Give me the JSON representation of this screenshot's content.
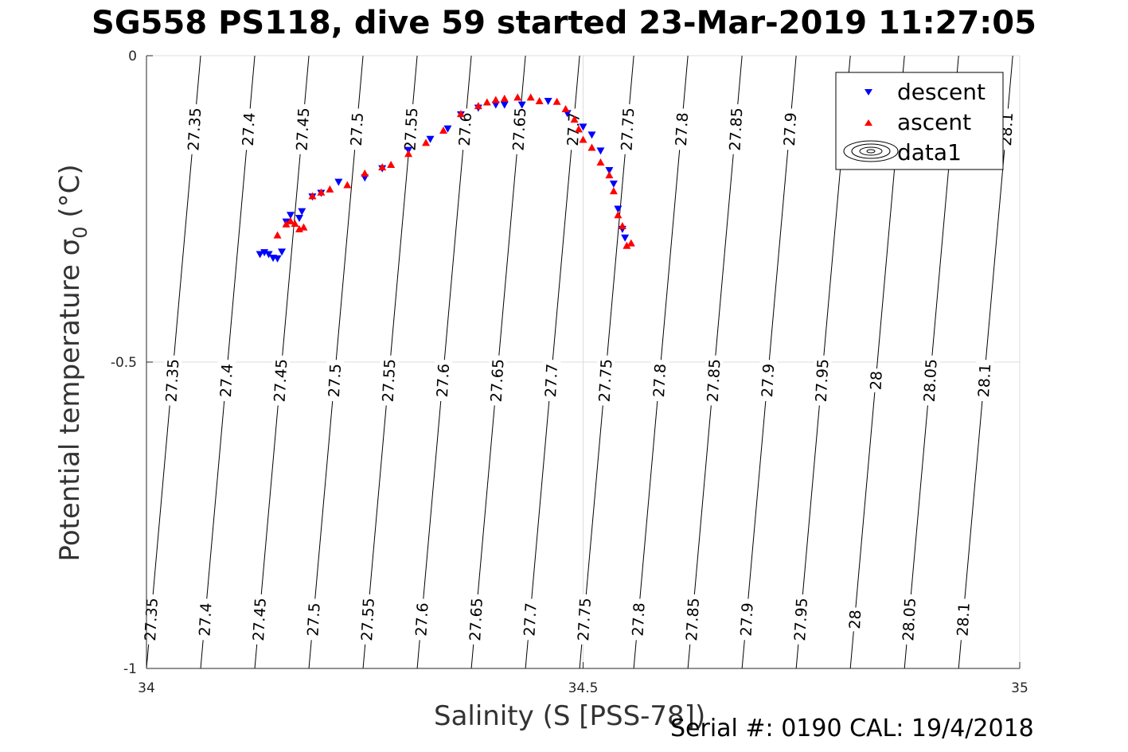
{
  "title": "SG558 PS118, dive 59 started 23-Mar-2019 11:27:05",
  "footer": "Serial #: 0190  CAL: 19/4/2018",
  "chart_data": {
    "type": "scatter",
    "title": "SG558 PS118, dive 59 started 23-Mar-2019 11:27:05",
    "xlabel": "Salinity (S [PSS-78])",
    "ylabel_main": "Potential temperature ",
    "ylabel_sigma": "σ",
    "ylabel_sub": "0",
    "ylabel_unit": " (°C)",
    "xlim": [
      34,
      35
    ],
    "ylim": [
      -1,
      0
    ],
    "xticks": [
      "34",
      "34.5",
      "35"
    ],
    "yticks": [
      "0",
      "-0.5",
      "-1"
    ],
    "grid": true,
    "legend_position": "top-right",
    "legend": [
      "descent",
      "ascent",
      "data1"
    ],
    "colors": {
      "descent": "#0000ff",
      "ascent": "#ff0000",
      "contour": "#000000",
      "grid": "#dddddd"
    },
    "series": [
      {
        "name": "descent",
        "marker": "triangle-down",
        "points": [
          [
            34.13,
            -0.324
          ],
          [
            34.135,
            -0.321
          ],
          [
            34.14,
            -0.324
          ],
          [
            34.145,
            -0.33
          ],
          [
            34.15,
            -0.331
          ],
          [
            34.155,
            -0.32
          ],
          [
            34.16,
            -0.271
          ],
          [
            34.165,
            -0.26
          ],
          [
            34.175,
            -0.265
          ],
          [
            34.178,
            -0.254
          ],
          [
            34.19,
            -0.23
          ],
          [
            34.2,
            -0.224
          ],
          [
            34.22,
            -0.206
          ],
          [
            34.25,
            -0.199
          ],
          [
            34.27,
            -0.184
          ],
          [
            34.3,
            -0.154
          ],
          [
            34.325,
            -0.136
          ],
          [
            34.345,
            -0.119
          ],
          [
            34.36,
            -0.096
          ],
          [
            34.38,
            -0.085
          ],
          [
            34.4,
            -0.08
          ],
          [
            34.41,
            -0.08
          ],
          [
            34.43,
            -0.08
          ],
          [
            34.46,
            -0.074
          ],
          [
            34.482,
            -0.094
          ],
          [
            34.5,
            -0.116
          ],
          [
            34.51,
            -0.129
          ],
          [
            34.52,
            -0.155
          ],
          [
            34.53,
            -0.187
          ],
          [
            34.535,
            -0.209
          ],
          [
            34.54,
            -0.25
          ],
          [
            34.545,
            -0.283
          ],
          [
            34.548,
            -0.297
          ]
        ]
      },
      {
        "name": "ascent",
        "marker": "triangle-up",
        "points": [
          [
            34.15,
            -0.293
          ],
          [
            34.16,
            -0.275
          ],
          [
            34.165,
            -0.27
          ],
          [
            34.17,
            -0.274
          ],
          [
            34.175,
            -0.283
          ],
          [
            34.18,
            -0.28
          ],
          [
            34.19,
            -0.229
          ],
          [
            34.2,
            -0.223
          ],
          [
            34.21,
            -0.218
          ],
          [
            34.23,
            -0.211
          ],
          [
            34.25,
            -0.192
          ],
          [
            34.27,
            -0.182
          ],
          [
            34.28,
            -0.178
          ],
          [
            34.3,
            -0.16
          ],
          [
            34.32,
            -0.142
          ],
          [
            34.34,
            -0.122
          ],
          [
            34.36,
            -0.095
          ],
          [
            34.38,
            -0.082
          ],
          [
            34.39,
            -0.076
          ],
          [
            34.4,
            -0.072
          ],
          [
            34.41,
            -0.07
          ],
          [
            34.425,
            -0.068
          ],
          [
            34.44,
            -0.068
          ],
          [
            34.45,
            -0.074
          ],
          [
            34.47,
            -0.075
          ],
          [
            34.48,
            -0.087
          ],
          [
            34.49,
            -0.104
          ],
          [
            34.495,
            -0.12
          ],
          [
            34.5,
            -0.137
          ],
          [
            34.51,
            -0.15
          ],
          [
            34.52,
            -0.174
          ],
          [
            34.53,
            -0.195
          ],
          [
            34.535,
            -0.221
          ],
          [
            34.54,
            -0.26
          ],
          [
            34.545,
            -0.278
          ],
          [
            34.55,
            -0.31
          ],
          [
            34.555,
            -0.306
          ]
        ]
      }
    ],
    "contours": {
      "levels": [
        27.35,
        27.4,
        27.45,
        27.5,
        27.55,
        27.6,
        27.65,
        27.7,
        27.75,
        27.8,
        27.85,
        27.9,
        27.95,
        28,
        28.05,
        28.1
      ],
      "labels": [
        "27.35",
        "27.4",
        "27.45",
        "27.5",
        "27.55",
        "27.6",
        "27.65",
        "27.7",
        "27.75",
        "27.8",
        "27.85",
        "27.9",
        "27.95",
        "28",
        "28.05",
        "28.1"
      ],
      "x_at_top": [
        34.062,
        34.124,
        34.186,
        34.248,
        34.31,
        34.372,
        34.434,
        34.496,
        34.558,
        34.62,
        34.682,
        34.744,
        34.806,
        34.868,
        34.93,
        34.992
      ],
      "x_at_bottom": [
        34.0,
        34.062,
        34.124,
        34.186,
        34.248,
        34.31,
        34.372,
        34.434,
        34.496,
        34.558,
        34.62,
        34.682,
        34.744,
        34.806,
        34.868,
        34.93
      ],
      "label_rows_temperature": [
        -0.12,
        -0.53,
        -0.92
      ]
    }
  }
}
